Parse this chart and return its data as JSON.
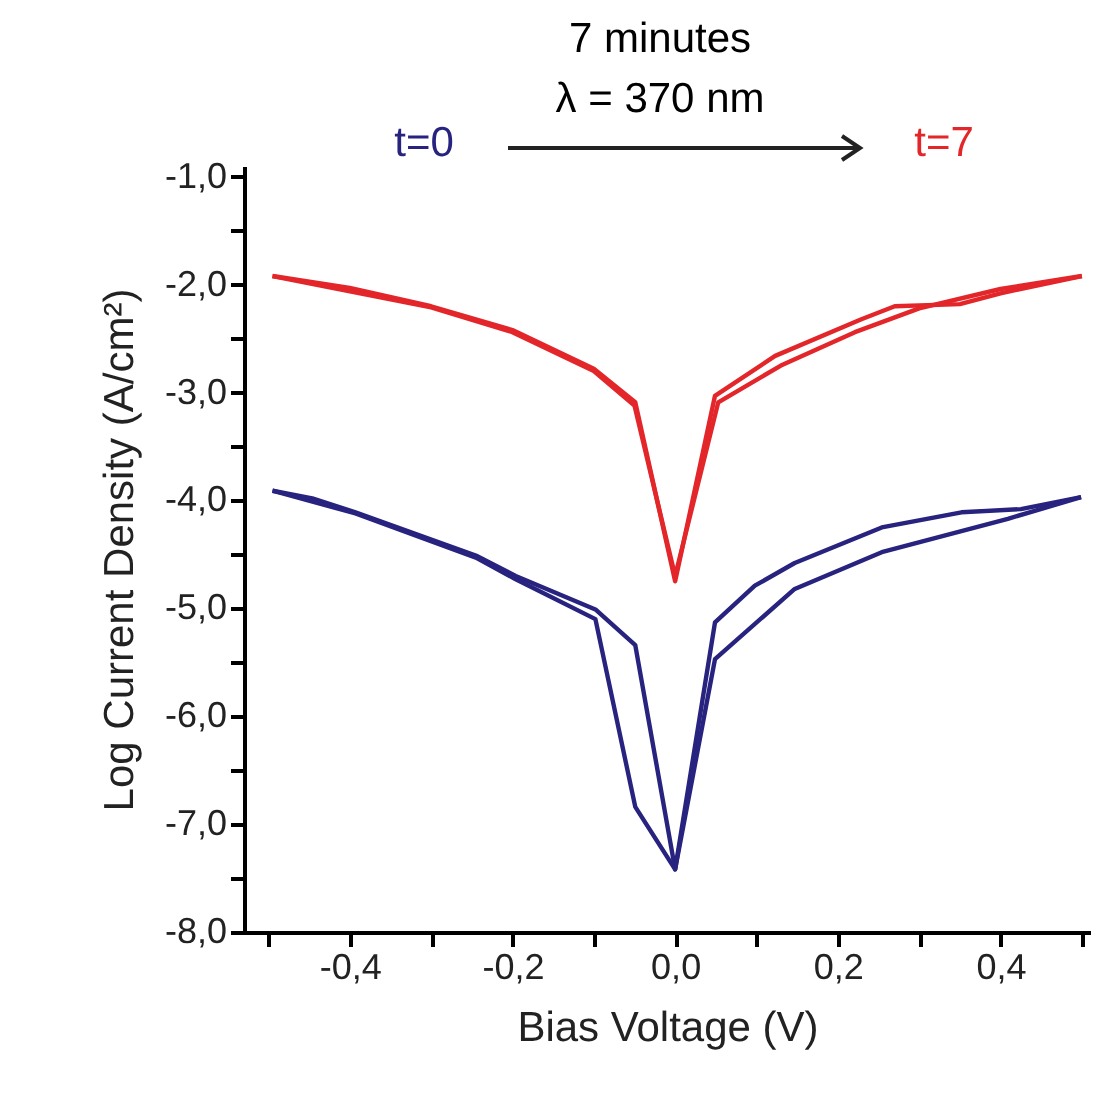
{
  "chart_data": {
    "type": "line",
    "xlabel": "Bias Voltage (V)",
    "ylabel": "Log Current Density (A/cm²)",
    "annotations": [
      "7 minutes",
      "λ = 370 nm"
    ],
    "xlim": [
      -0.53,
      0.51
    ],
    "xticks": [
      {
        "value": -0.5,
        "label": null
      },
      {
        "value": -0.4,
        "label": "-0,4"
      },
      {
        "value": -0.3,
        "label": null
      },
      {
        "value": -0.2,
        "label": "-0,2"
      },
      {
        "value": -0.1,
        "label": null
      },
      {
        "value": 0,
        "label": "0,0"
      },
      {
        "value": 0.1,
        "label": null
      },
      {
        "value": 0.2,
        "label": "0,2"
      },
      {
        "value": 0.3,
        "label": null
      },
      {
        "value": 0.4,
        "label": "0,4"
      },
      {
        "value": 0.5,
        "label": null
      }
    ],
    "ylim": [
      -8,
      -0.9
    ],
    "yticks": [
      {
        "value": -8,
        "label": "-8,0"
      },
      {
        "value": -7.5,
        "label": null
      },
      {
        "value": -7,
        "label": "-7,0"
      },
      {
        "value": -6.5,
        "label": null
      },
      {
        "value": -6,
        "label": "-6,0"
      },
      {
        "value": -5.5,
        "label": null
      },
      {
        "value": -5,
        "label": "-5,0"
      },
      {
        "value": -4.5,
        "label": null
      },
      {
        "value": -4,
        "label": "-4,0"
      },
      {
        "value": -3.5,
        "label": null
      },
      {
        "value": -3,
        "label": "-3,0"
      },
      {
        "value": -2.5,
        "label": null
      },
      {
        "value": -2,
        "label": "-2,0"
      },
      {
        "value": -1.5,
        "label": null
      },
      {
        "value": -1,
        "label": "-1,0"
      }
    ],
    "series": [
      {
        "name": "t=0",
        "color": "#27237f",
        "x": [
          -0.495,
          -0.446,
          -0.393,
          -0.245,
          -0.196,
          -0.098,
          -0.049,
          0,
          0.049,
          0.098,
          0.147,
          0.254,
          0.352,
          0.425,
          0.499
        ],
        "values": [
          -3.91,
          -3.98,
          -4.11,
          -4.51,
          -4.7,
          -5.01,
          -5.34,
          -7.42,
          -5.13,
          -4.79,
          -4.58,
          -4.25,
          -4.11,
          -4.08,
          -3.97
        ]
      },
      {
        "color": "#27237f",
        "x": [
          -0.495,
          -0.393,
          -0.245,
          -0.196,
          -0.098,
          -0.049,
          0,
          0.049,
          0.147,
          0.254,
          0.409,
          0.499
        ],
        "values": [
          -3.91,
          -4.12,
          -4.53,
          -4.73,
          -5.1,
          -6.84,
          -7.42,
          -5.47,
          -4.82,
          -4.48,
          -4.17,
          -3.97
        ]
      },
      {
        "name": "t=7",
        "color": "#e3262a",
        "x": [
          -0.495,
          -0.4,
          -0.3,
          -0.2,
          -0.1,
          -0.049,
          0,
          0.049,
          0.123,
          0.229,
          0.27,
          0.35,
          0.4,
          0.5
        ],
        "values": [
          -1.92,
          -2.03,
          -2.2,
          -2.42,
          -2.78,
          -3.09,
          -4.75,
          -3.03,
          -2.66,
          -2.32,
          -2.2,
          -2.18,
          -2.08,
          -1.92
        ]
      },
      {
        "color": "#e3262a",
        "x": [
          -0.495,
          -0.3,
          -0.2,
          -0.1,
          -0.05,
          0,
          0.053,
          0.13,
          0.221,
          0.3,
          0.4,
          0.5
        ],
        "values": [
          -1.92,
          -2.21,
          -2.44,
          -2.8,
          -3.12,
          -4.7,
          -3.09,
          -2.75,
          -2.44,
          -2.22,
          -2.04,
          -1.92
        ]
      }
    ]
  }
}
